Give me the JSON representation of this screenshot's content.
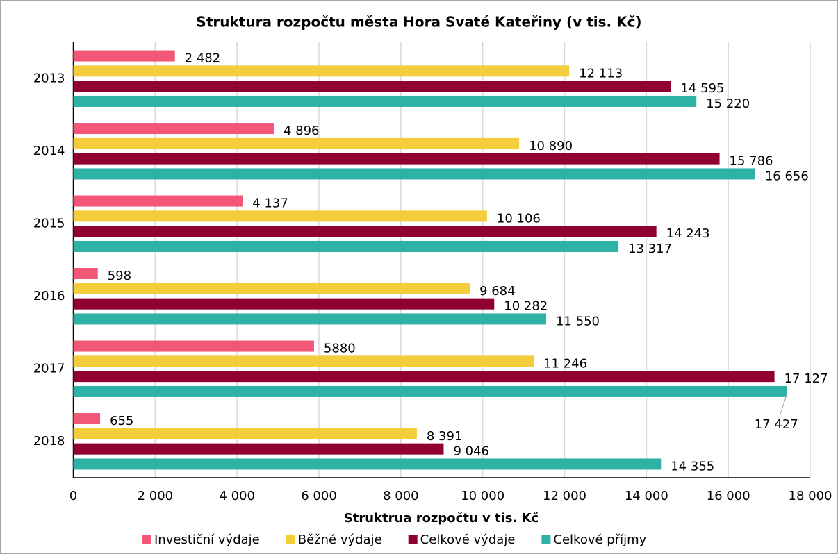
{
  "chart_data": {
    "type": "bar",
    "orientation": "horizontal",
    "title": "Struktura rozpočtu města Hora Svaté Kateřiny (v tis. Kč)",
    "x_label": "Struktrua rozpočtu v tis. Kč",
    "categories": [
      "2013",
      "2014",
      "2015",
      "2016",
      "2017",
      "2018"
    ],
    "series": [
      {
        "name": "Investiční výdaje",
        "color": "#f25777",
        "values": [
          2482,
          4896,
          4137,
          598,
          5880,
          655
        ],
        "value_labels": [
          "2 482",
          "4 896",
          "4 137",
          "598",
          "5880",
          "655"
        ]
      },
      {
        "name": "Běžné výdaje",
        "color": "#f3cd3b",
        "values": [
          12113,
          10890,
          10106,
          9684,
          11246,
          8391
        ],
        "value_labels": [
          "12 113",
          "10 890",
          "10 106",
          "9 684",
          "11 246",
          "8 391"
        ]
      },
      {
        "name": "Celkové výdaje",
        "color": "#900030",
        "values": [
          14595,
          15786,
          14243,
          10282,
          17127,
          9046
        ],
        "value_labels": [
          "14 595",
          "15 786",
          "14 243",
          "10 282",
          "17 127",
          "9 046"
        ]
      },
      {
        "name": "Celkové příjmy",
        "color": "#2fb2a6",
        "values": [
          15220,
          16656,
          13317,
          11550,
          17427,
          14355
        ],
        "value_labels": [
          "15 220",
          "16 656",
          "13 317",
          "11 550",
          "17 427",
          "14 355"
        ]
      }
    ],
    "xlim": [
      0,
      18000
    ],
    "xticks": [
      0,
      {
        "value": 2000,
        "label": "2 000"
      },
      {
        "value": 4000,
        "label": "4 000"
      },
      {
        "value": 6000,
        "label": "6 000"
      },
      {
        "value": 8000,
        "label": "8 000"
      },
      {
        "value": 10000,
        "label": "10 000"
      },
      {
        "value": 12000,
        "label": "12 000"
      },
      {
        "value": 14000,
        "label": "14 000"
      },
      {
        "value": 16000,
        "label": "16 000"
      },
      {
        "value": 18000,
        "label": "18 000"
      }
    ],
    "grid": true,
    "legend": "bottom"
  }
}
